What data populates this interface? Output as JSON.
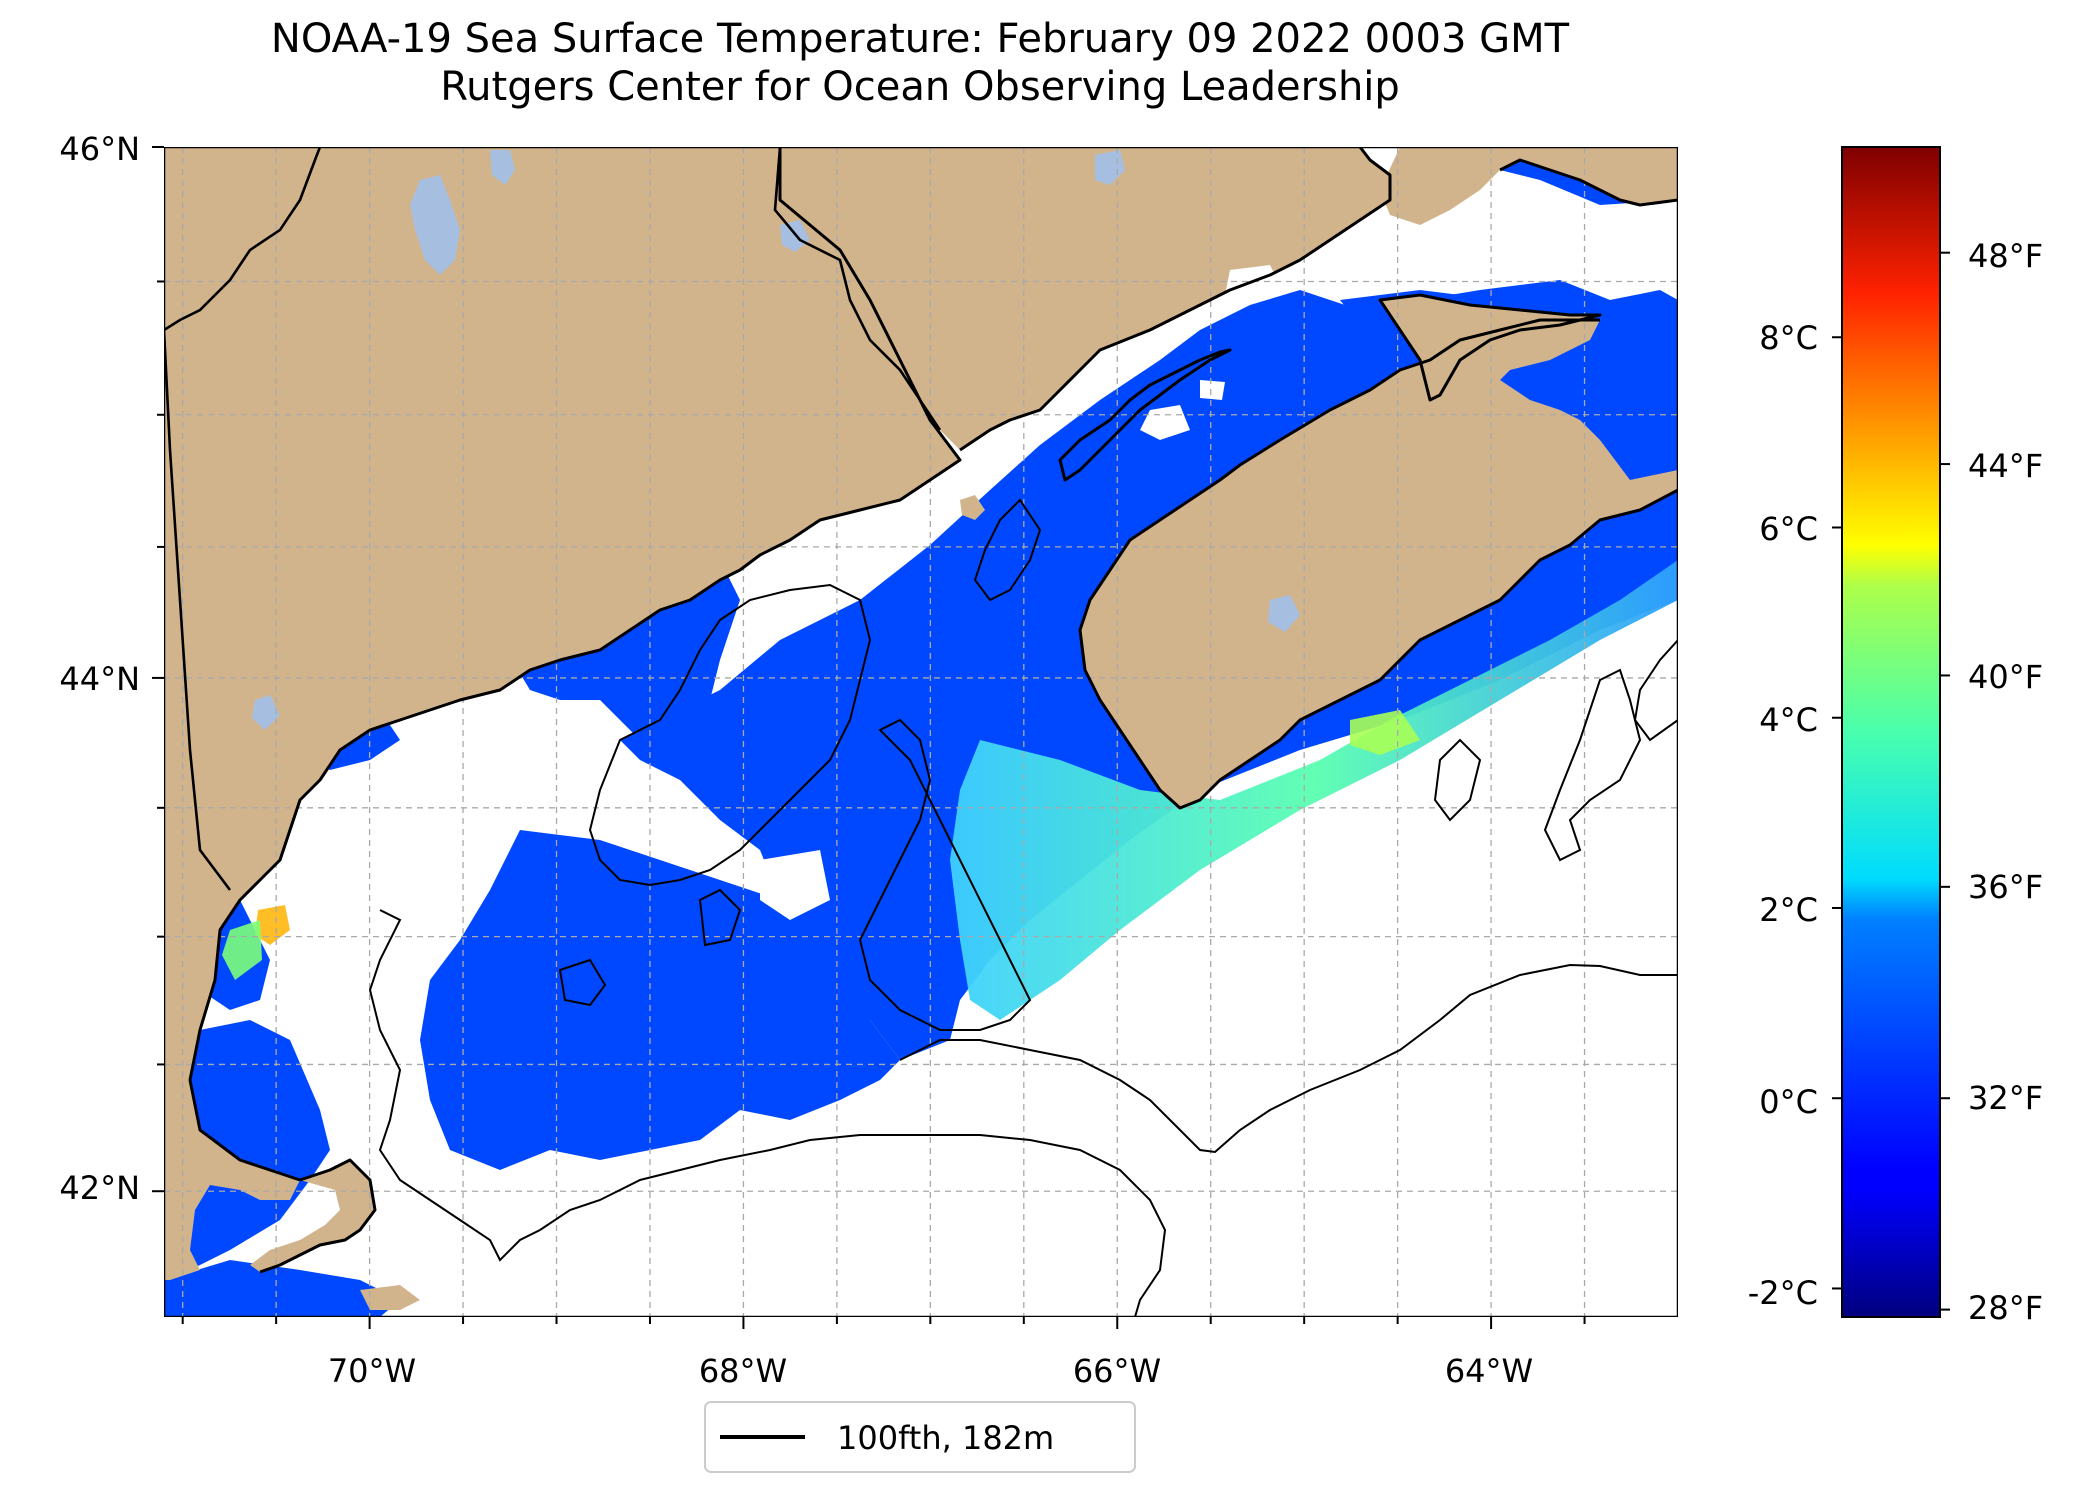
{
  "title": {
    "line1": "NOAA-19 Sea Surface Temperature: February 09 2022 0003 GMT",
    "line2": "Rutgers Center for Ocean Observing Leadership"
  },
  "axes": {
    "lat_labels": [
      "46°N",
      "44°N",
      "42°N"
    ],
    "lon_labels": [
      "70°W",
      "68°W",
      "66°W",
      "64°W"
    ]
  },
  "colorbar": {
    "celsius_labels": [
      "8°C",
      "6°C",
      "4°C",
      "2°C",
      "0°C",
      "-2°C"
    ],
    "fahrenheit_labels": [
      "48°F",
      "44°F",
      "40°F",
      "36°F",
      "32°F",
      "28°F"
    ],
    "colormap": "jet"
  },
  "legend": {
    "label": "100fth, 182m",
    "line_color": "#000000"
  },
  "colors": {
    "land": "#d2b48c",
    "lakes": "#a6bfe0",
    "ocean_cold": "#0048ff",
    "no_data": "#ffffff"
  },
  "map_data": {
    "lon_range": [
      -71.1,
      -63.0
    ],
    "lat_range": [
      41.5,
      46.0
    ],
    "temp_range_c": [
      -2.3,
      10.0
    ],
    "lat_ticks": [
      46,
      44,
      42
    ],
    "lon_ticks": [
      -70,
      -68,
      -66,
      -64
    ],
    "celsius_ticks": [
      8,
      6,
      4,
      2,
      0,
      -2
    ],
    "fahrenheit_ticks": [
      48,
      44,
      40,
      36,
      32,
      28
    ]
  }
}
